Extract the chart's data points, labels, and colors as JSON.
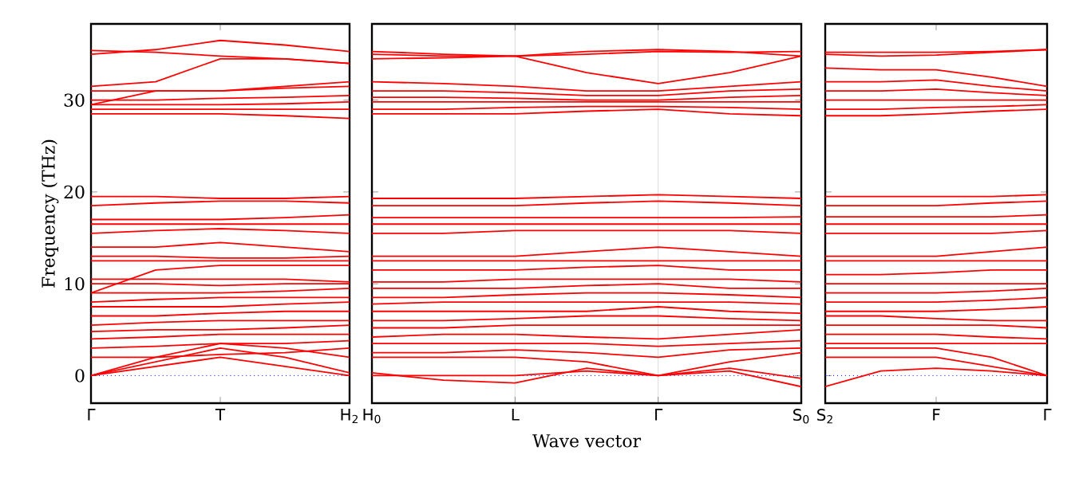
{
  "chart_data": [
    {
      "type": "line",
      "ylabel": "Frequency (THz)",
      "categories": [
        "Γ",
        null,
        "T",
        null,
        "H$_{2}$"
      ],
      "ylim": [
        -3,
        38.3
      ],
      "yticks": [
        0,
        10,
        20,
        30
      ],
      "ref_lines": [
        {
          "axis": "y",
          "value": 0,
          "color": "#0000ff",
          "line_style": "dotted"
        }
      ],
      "series": [
        {
          "color": "#ff0000",
          "values": [
            0,
            1,
            2,
            1,
            0
          ]
        },
        {
          "color": "#ff0000",
          "values": [
            0,
            1.5,
            3,
            2,
            0.3
          ]
        },
        {
          "color": "#ff0000",
          "values": [
            0,
            2,
            3.5,
            3,
            2
          ]
        },
        {
          "color": "#ff0000",
          "values": [
            2,
            2,
            2.3,
            2.5,
            3
          ]
        },
        {
          "color": "#ff0000",
          "values": [
            3,
            3.2,
            3.5,
            3.5,
            3.8
          ]
        },
        {
          "color": "#ff0000",
          "values": [
            4,
            4.2,
            4.5,
            4.5,
            4.5
          ]
        },
        {
          "color": "#ff0000",
          "values": [
            4.8,
            5,
            5,
            5.2,
            5.5
          ]
        },
        {
          "color": "#ff0000",
          "values": [
            5.5,
            5.8,
            6,
            6,
            6
          ]
        },
        {
          "color": "#ff0000",
          "values": [
            6.5,
            6.5,
            6.8,
            7,
            7
          ]
        },
        {
          "color": "#ff0000",
          "values": [
            7.5,
            7.5,
            7.5,
            7.8,
            8
          ]
        },
        {
          "color": "#ff0000",
          "values": [
            8,
            8.3,
            8.5,
            8.5,
            8.5
          ]
        },
        {
          "color": "#ff0000",
          "values": [
            9,
            9,
            9,
            9.2,
            9.5
          ]
        },
        {
          "color": "#ff0000",
          "values": [
            10,
            10,
            9.8,
            10,
            10
          ]
        },
        {
          "color": "#ff0000",
          "values": [
            10.5,
            10.5,
            10.5,
            10.5,
            10.2
          ]
        },
        {
          "color": "#ff0000",
          "values": [
            9,
            11.5,
            12,
            12,
            12
          ]
        },
        {
          "color": "#ff0000",
          "values": [
            12.5,
            12.5,
            12.5,
            12.5,
            12.5
          ]
        },
        {
          "color": "#ff0000",
          "values": [
            13,
            13,
            12.8,
            12.8,
            13
          ]
        },
        {
          "color": "#ff0000",
          "values": [
            14,
            14,
            14.5,
            14,
            13.5
          ]
        },
        {
          "color": "#ff0000",
          "values": [
            15.5,
            15.8,
            16,
            15.8,
            15.5
          ]
        },
        {
          "color": "#ff0000",
          "values": [
            16.5,
            16.5,
            16.5,
            16.5,
            16.5
          ]
        },
        {
          "color": "#ff0000",
          "values": [
            17,
            17,
            17,
            17.2,
            17.5
          ]
        },
        {
          "color": "#ff0000",
          "values": [
            18.5,
            18.8,
            19,
            19,
            18.8
          ]
        },
        {
          "color": "#ff0000",
          "values": [
            19.5,
            19.5,
            19.3,
            19.3,
            19.5
          ]
        },
        {
          "color": "#ff0000",
          "values": [
            28.5,
            28.5,
            28.5,
            28.3,
            28
          ]
        },
        {
          "color": "#ff0000",
          "values": [
            29,
            29,
            29,
            29,
            29
          ]
        },
        {
          "color": "#ff0000",
          "values": [
            29.5,
            29.5,
            29.5,
            29.6,
            29.8
          ]
        },
        {
          "color": "#ff0000",
          "values": [
            30,
            30,
            30.2,
            30.3,
            30.5
          ]
        },
        {
          "color": "#ff0000",
          "values": [
            29.5,
            31,
            31,
            31.5,
            32
          ]
        },
        {
          "color": "#ff0000",
          "values": [
            31,
            31,
            31,
            31.3,
            31.5
          ]
        },
        {
          "color": "#ff0000",
          "values": [
            31.5,
            32,
            34.5,
            34.5,
            34
          ]
        },
        {
          "color": "#ff0000",
          "values": [
            35,
            35.5,
            36.5,
            36,
            35.3
          ]
        },
        {
          "color": "#ff0000",
          "values": [
            35.4,
            35.2,
            34.8,
            34.5,
            34
          ]
        }
      ]
    },
    {
      "type": "line",
      "xlabel": "Wave vector",
      "categories": [
        "H$_{0}$",
        null,
        "L",
        null,
        "Γ",
        null,
        "S$_{0}$"
      ],
      "ylim": [
        -3,
        38.3
      ],
      "yticks": [
        0,
        10,
        20,
        30
      ],
      "tick_labels": "x",
      "grid": "x",
      "ref_lines": [
        {
          "axis": "y",
          "value": 0,
          "color": "#0000ff",
          "line_style": "dotted"
        }
      ],
      "series": [
        {
          "color": "#ff0000",
          "values": [
            0.3,
            -0.5,
            -0.8,
            0.8,
            0,
            0.5,
            -1.2
          ]
        },
        {
          "color": "#ff0000",
          "values": [
            0,
            0,
            0,
            0.5,
            0,
            0.8,
            -0.3
          ]
        },
        {
          "color": "#ff0000",
          "values": [
            2,
            2,
            2,
            1.5,
            0,
            1.5,
            2.5
          ]
        },
        {
          "color": "#ff0000",
          "values": [
            2.5,
            2.5,
            2.8,
            2.5,
            2,
            2.8,
            3
          ]
        },
        {
          "color": "#ff0000",
          "values": [
            3.5,
            3.5,
            3.5,
            3.5,
            3.2,
            3.5,
            3.8
          ]
        },
        {
          "color": "#ff0000",
          "values": [
            4.2,
            4.5,
            4.5,
            4.2,
            4,
            4.5,
            5
          ]
        },
        {
          "color": "#ff0000",
          "values": [
            5.2,
            5.2,
            5.5,
            5.5,
            5.5,
            5.5,
            5.5
          ]
        },
        {
          "color": "#ff0000",
          "values": [
            6,
            6,
            6.2,
            6.5,
            6.5,
            6.2,
            6
          ]
        },
        {
          "color": "#ff0000",
          "values": [
            7,
            7,
            7,
            7,
            7.5,
            7,
            6.8
          ]
        },
        {
          "color": "#ff0000",
          "values": [
            7.8,
            8,
            8,
            8,
            8,
            8,
            7.8
          ]
        },
        {
          "color": "#ff0000",
          "values": [
            8.5,
            8.5,
            8.8,
            9,
            9,
            8.8,
            8.5
          ]
        },
        {
          "color": "#ff0000",
          "values": [
            9.5,
            9.5,
            9.5,
            9.8,
            10,
            9.5,
            9.5
          ]
        },
        {
          "color": "#ff0000",
          "values": [
            10.2,
            10.2,
            10.5,
            10.5,
            10.5,
            10.5,
            10.2
          ]
        },
        {
          "color": "#ff0000",
          "values": [
            11.5,
            11.5,
            11.5,
            11.8,
            12,
            11.5,
            11.5
          ]
        },
        {
          "color": "#ff0000",
          "values": [
            12.5,
            12.5,
            12.5,
            12.5,
            12.5,
            12.5,
            12.5
          ]
        },
        {
          "color": "#ff0000",
          "values": [
            13,
            13,
            13,
            13.5,
            14,
            13.5,
            13
          ]
        },
        {
          "color": "#ff0000",
          "values": [
            15.5,
            15.5,
            15.8,
            15.8,
            15.8,
            15.8,
            15.5
          ]
        },
        {
          "color": "#ff0000",
          "values": [
            16.5,
            16.5,
            16.5,
            16.5,
            16.5,
            16.5,
            16.5
          ]
        },
        {
          "color": "#ff0000",
          "values": [
            17.2,
            17.2,
            17.2,
            17.2,
            17.2,
            17.2,
            17.3
          ]
        },
        {
          "color": "#ff0000",
          "values": [
            18.5,
            18.5,
            18.5,
            18.8,
            19,
            18.8,
            18.5
          ]
        },
        {
          "color": "#ff0000",
          "values": [
            19.3,
            19.3,
            19.3,
            19.5,
            19.7,
            19.5,
            19.3
          ]
        },
        {
          "color": "#ff0000",
          "values": [
            28.5,
            28.5,
            28.5,
            28.8,
            29,
            28.5,
            28.3
          ]
        },
        {
          "color": "#ff0000",
          "values": [
            29,
            29,
            29.2,
            29.3,
            29.3,
            29.2,
            29
          ]
        },
        {
          "color": "#ff0000",
          "values": [
            29.8,
            29.8,
            29.8,
            29.8,
            29.8,
            29.8,
            29.8
          ]
        },
        {
          "color": "#ff0000",
          "values": [
            30.3,
            30.3,
            30.2,
            30,
            30,
            30.3,
            30.5
          ]
        },
        {
          "color": "#ff0000",
          "values": [
            31,
            31,
            30.8,
            30.5,
            30.5,
            31,
            31.2
          ]
        },
        {
          "color": "#ff0000",
          "values": [
            32,
            31.8,
            31.5,
            31,
            31,
            31.5,
            32
          ]
        },
        {
          "color": "#ff0000",
          "values": [
            34.5,
            34.6,
            34.8,
            33,
            31.8,
            33,
            34.8
          ]
        },
        {
          "color": "#ff0000",
          "values": [
            35,
            34.8,
            34.8,
            35,
            35.3,
            35.2,
            35.3
          ]
        },
        {
          "color": "#ff0000",
          "values": [
            35.3,
            35,
            34.8,
            35.3,
            35.5,
            35.3,
            34.8
          ]
        }
      ]
    },
    {
      "type": "line",
      "categories": [
        "S$_{2}$",
        null,
        "F",
        null,
        "Γ"
      ],
      "ylim": [
        -3,
        38.3
      ],
      "yticks": [
        0,
        10,
        20,
        30
      ],
      "tick_labels": "x",
      "ref_lines": [
        {
          "axis": "y",
          "value": 0,
          "color": "#0000ff",
          "line_style": "dotted"
        }
      ],
      "series": [
        {
          "color": "#ff0000",
          "values": [
            -1.2,
            0.5,
            0.8,
            0.5,
            0
          ]
        },
        {
          "color": "#ff0000",
          "values": [
            2,
            2,
            2,
            1,
            0
          ]
        },
        {
          "color": "#ff0000",
          "values": [
            3,
            3,
            3,
            2,
            0
          ]
        },
        {
          "color": "#ff0000",
          "values": [
            3.5,
            3.5,
            3.5,
            3.5,
            3.5
          ]
        },
        {
          "color": "#ff0000",
          "values": [
            4.5,
            4.5,
            4.5,
            4.2,
            4
          ]
        },
        {
          "color": "#ff0000",
          "values": [
            5.5,
            5.5,
            5.5,
            5.5,
            5.2
          ]
        },
        {
          "color": "#ff0000",
          "values": [
            6.5,
            6.5,
            6.2,
            6,
            6
          ]
        },
        {
          "color": "#ff0000",
          "values": [
            7,
            7,
            7,
            7.2,
            7.5
          ]
        },
        {
          "color": "#ff0000",
          "values": [
            8,
            8,
            8,
            8.2,
            8.5
          ]
        },
        {
          "color": "#ff0000",
          "values": [
            9,
            9,
            9,
            9.2,
            9.5
          ]
        },
        {
          "color": "#ff0000",
          "values": [
            10,
            10,
            10,
            10,
            10
          ]
        },
        {
          "color": "#ff0000",
          "values": [
            11,
            11,
            11.2,
            11.5,
            11.5
          ]
        },
        {
          "color": "#ff0000",
          "values": [
            12.5,
            12.5,
            12.5,
            12.5,
            12.5
          ]
        },
        {
          "color": "#ff0000",
          "values": [
            13,
            13,
            13,
            13.5,
            14
          ]
        },
        {
          "color": "#ff0000",
          "values": [
            15.5,
            15.5,
            15.5,
            15.5,
            15.8
          ]
        },
        {
          "color": "#ff0000",
          "values": [
            16.5,
            16.5,
            16.5,
            16.5,
            16.5
          ]
        },
        {
          "color": "#ff0000",
          "values": [
            17.3,
            17.3,
            17.3,
            17.3,
            17.5
          ]
        },
        {
          "color": "#ff0000",
          "values": [
            18.5,
            18.5,
            18.5,
            18.8,
            19
          ]
        },
        {
          "color": "#ff0000",
          "values": [
            19.5,
            19.5,
            19.5,
            19.5,
            19.7
          ]
        },
        {
          "color": "#ff0000",
          "values": [
            28.3,
            28.3,
            28.5,
            28.8,
            29
          ]
        },
        {
          "color": "#ff0000",
          "values": [
            29,
            29,
            29.2,
            29.3,
            29.5
          ]
        },
        {
          "color": "#ff0000",
          "values": [
            30,
            30,
            30,
            30,
            30
          ]
        },
        {
          "color": "#ff0000",
          "values": [
            31,
            31,
            31.2,
            30.8,
            30.5
          ]
        },
        {
          "color": "#ff0000",
          "values": [
            32,
            32,
            32.2,
            31.5,
            31
          ]
        },
        {
          "color": "#ff0000",
          "values": [
            33.5,
            33.3,
            33.3,
            32.5,
            31.5
          ]
        },
        {
          "color": "#ff0000",
          "values": [
            35,
            34.8,
            34.9,
            35.2,
            35.5
          ]
        },
        {
          "color": "#ff0000",
          "values": [
            35.2,
            35.2,
            35.2,
            35.3,
            35.5
          ]
        }
      ]
    }
  ]
}
